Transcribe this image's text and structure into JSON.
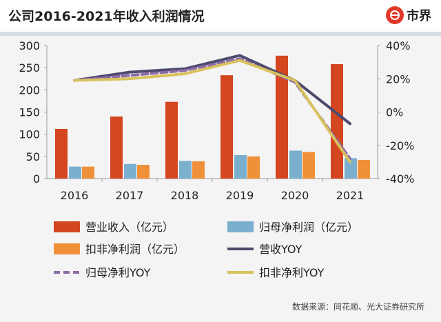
{
  "header": {
    "title": "公司2016-2021年收入利润情况",
    "brand": "市界"
  },
  "source": "数据来源：同花顺、光大证券研究所",
  "chart_data": {
    "type": "bar",
    "categories": [
      "2016",
      "2017",
      "2018",
      "2019",
      "2020",
      "2021"
    ],
    "ylim": [
      0,
      300
    ],
    "yticks": [
      "0",
      "50",
      "100",
      "150",
      "200",
      "250",
      "300"
    ],
    "y2lim": [
      -40,
      40
    ],
    "y2ticks": [
      "-40%",
      "-20%",
      "0%",
      "20%",
      "40%"
    ],
    "grid": false,
    "legend_position": "bottom",
    "series": [
      {
        "name": "营业收入（亿元）",
        "kind": "bar",
        "axis": "left",
        "color": "#d4461f",
        "values": [
          112,
          140,
          173,
          233,
          277,
          258
        ]
      },
      {
        "name": "归母净利润（亿元）",
        "kind": "bar",
        "axis": "left",
        "color": "#7aafce",
        "values": [
          27,
          33,
          40,
          53,
          63,
          46
        ]
      },
      {
        "name": "扣非净利润（亿元）",
        "kind": "bar",
        "axis": "left",
        "color": "#f0913a",
        "values": [
          27,
          31,
          39,
          50,
          60,
          42
        ]
      },
      {
        "name": "营收YOY",
        "kind": "line",
        "axis": "right",
        "color": "#4d4a6e",
        "values": [
          19,
          24,
          26,
          34,
          19,
          -7
        ]
      },
      {
        "name": "归母净利YOY",
        "kind": "dashed-line",
        "axis": "right",
        "color": "#8b6aa6",
        "values": [
          19,
          22,
          25,
          32,
          18,
          -28
        ]
      },
      {
        "name": "扣非净利YOY",
        "kind": "line",
        "axis": "right",
        "color": "#d9c25c",
        "values": [
          19,
          20,
          23,
          31,
          19,
          -30
        ]
      }
    ]
  }
}
